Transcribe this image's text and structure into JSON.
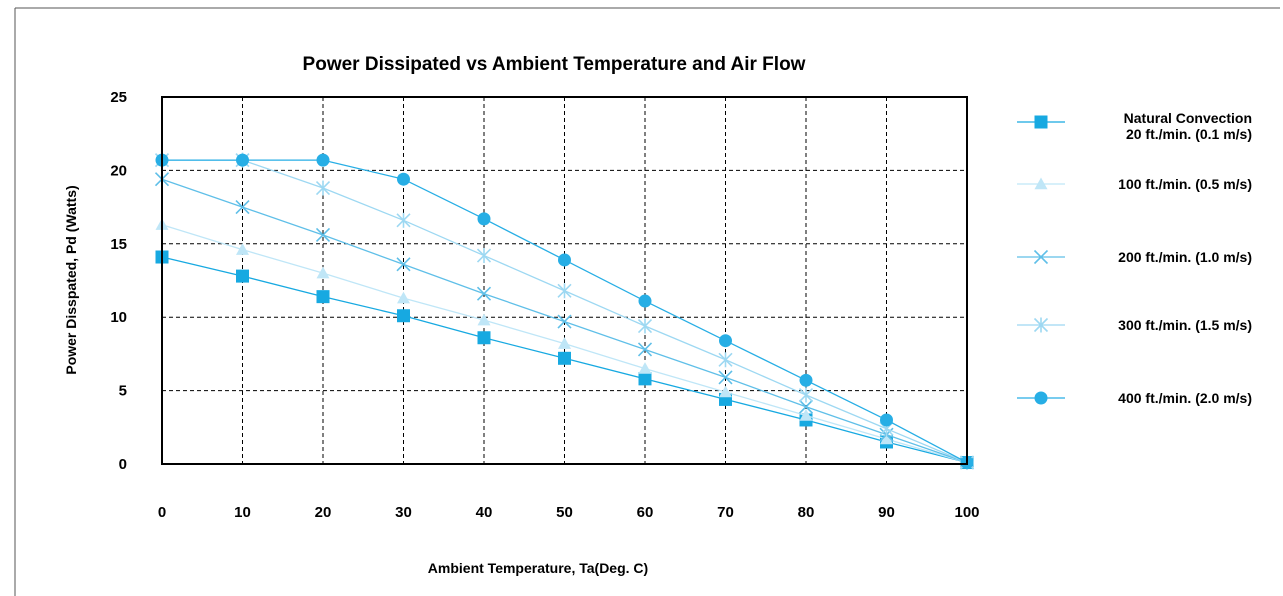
{
  "chart_data": {
    "type": "line",
    "title": "Power Dissipated vs Ambient Temperature and Air Flow",
    "xlabel": "Ambient Temperature, Ta(Deg. C)",
    "ylabel": "Power Disspated, Pd (Watts)",
    "xlim": [
      0,
      100
    ],
    "ylim": [
      0,
      25
    ],
    "x_ticks": [
      0,
      10,
      20,
      30,
      40,
      50,
      60,
      70,
      80,
      90,
      100
    ],
    "y_ticks": [
      0,
      5,
      10,
      15,
      20,
      25
    ],
    "grid": "dashed",
    "legend_position": "right",
    "x": [
      0,
      10,
      20,
      30,
      40,
      50,
      60,
      70,
      80,
      90,
      100
    ],
    "series": [
      {
        "name": [
          "Natural Convection",
          "20 ft./min. (0.1 m/s)"
        ],
        "values": [
          14.1,
          12.8,
          11.4,
          10.1,
          8.6,
          7.2,
          5.8,
          4.4,
          3.0,
          1.5,
          0.1
        ],
        "color": "#17a9e1",
        "marker": "square"
      },
      {
        "name": [
          "100 ft./min. (0.5 m/s)"
        ],
        "values": [
          16.3,
          14.6,
          13.0,
          11.3,
          9.8,
          8.2,
          6.5,
          4.9,
          3.3,
          1.7,
          0.1
        ],
        "color": "#bfe6f7",
        "marker": "triangle"
      },
      {
        "name": [
          "200 ft./min. (1.0 m/s)"
        ],
        "values": [
          19.4,
          17.5,
          15.6,
          13.6,
          11.6,
          9.7,
          7.8,
          5.9,
          3.9,
          2.0,
          0.1
        ],
        "color": "#5fbfe8",
        "marker": "x"
      },
      {
        "name": [
          "300 ft./min. (1.5 m/s)"
        ],
        "values": [
          20.7,
          20.7,
          18.8,
          16.6,
          14.2,
          11.8,
          9.4,
          7.1,
          4.7,
          2.4,
          0.1
        ],
        "color": "#9dd8f2",
        "marker": "star"
      },
      {
        "name": [
          "400 ft./min. (2.0 m/s)"
        ],
        "values": [
          20.7,
          20.7,
          20.7,
          19.4,
          16.7,
          13.9,
          11.1,
          8.4,
          5.7,
          3.0,
          0.1
        ],
        "color": "#27aee5",
        "marker": "circle"
      }
    ]
  }
}
